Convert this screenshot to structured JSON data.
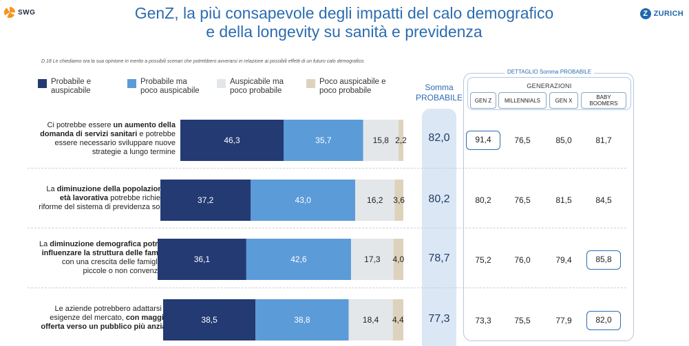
{
  "header": {
    "title_line1": "GenZ, la più consapevole degli impatti del calo demografico",
    "title_line2": "e della longevity su sanità e previdenza",
    "logo_left": "SWG",
    "logo_right": "ZURICH",
    "logo_right_mark": "Z"
  },
  "question": "D.18 Le chiediamo ora la sua opinione in merito a possibili scenari che potrebbero avverarsi in relazione ai possibili effetti di un futuro calo demografico.",
  "legend": [
    {
      "line1": "Probabile e",
      "line2": "auspicabile",
      "color": "#233a73"
    },
    {
      "line1": "Probabile ma",
      "line2": "poco auspicabile",
      "color": "#5b9bd8"
    },
    {
      "line1": "Auspicabile ma",
      "line2": "poco probabile",
      "color": "#e3e7ea"
    },
    {
      "line1": "Poco auspicabile e",
      "line2": "poco probabile",
      "color": "#ddd3bd"
    }
  ],
  "somma": {
    "line1": "Somma",
    "line2": "PROBABILE"
  },
  "panel": {
    "title": "DETTAGLIO Somma PROBABILE",
    "group_title": "GENERAZIONI",
    "columns": [
      "GEN Z",
      "MILLENNIALS",
      "GEN X",
      "BABY BOOMERS"
    ]
  },
  "rows": [
    {
      "label_parts": [
        {
          "text": "Ci potrebbe essere ",
          "bold": false
        },
        {
          "text": "un aumento della domanda di servizi sanitari",
          "bold": true
        },
        {
          "text": " e potrebbe essere necessario sviluppare nuove strategie a lungo termine",
          "bold": false
        }
      ],
      "somma": "82,0",
      "generations": [
        "91,4",
        "76,5",
        "85,0",
        "81,7"
      ],
      "highlight": 0
    },
    {
      "label_parts": [
        {
          "text": "La ",
          "bold": false
        },
        {
          "text": "diminuzione della popolazione in età lavorativa",
          "bold": true
        },
        {
          "text": " potrebbe richiedere riforme del sistema di previdenza sociale",
          "bold": false
        }
      ],
      "somma": "80,2",
      "generations": [
        "80,2",
        "76,5",
        "81,5",
        "84,5"
      ],
      "highlight": -1
    },
    {
      "label_parts": [
        {
          "text": "La ",
          "bold": false
        },
        {
          "text": "diminuzione demografica potrebbe influenzare la struttura delle famiglie",
          "bold": true
        },
        {
          "text": ", con una crescita delle famiglie più piccole o non convenzionali",
          "bold": false
        }
      ],
      "somma": "78,7",
      "generations": [
        "75,2",
        "76,0",
        "79,4",
        "85,8"
      ],
      "highlight": 3
    },
    {
      "label_parts": [
        {
          "text": "Le aziende potrebbero adattarsi alle esigenze del mercato, ",
          "bold": false
        },
        {
          "text": "con maggiore offerta verso un pubblico più anziano",
          "bold": true
        }
      ],
      "somma": "77,3",
      "generations": [
        "73,3",
        "75,5",
        "77,9",
        "82,0"
      ],
      "highlight": 3
    }
  ],
  "chart_data": {
    "type": "bar",
    "orientation": "horizontal",
    "stacked": true,
    "categories": [
      "Ci potrebbe essere un aumento della domanda di servizi sanitari e potrebbe essere necessario sviluppare nuove strategie a lungo termine",
      "La diminuzione della popolazione in età lavorativa potrebbe richiedere riforme del sistema di previdenza sociale",
      "La diminuzione demografica potrebbe influenzare la struttura delle famiglie, con una crescita delle famiglie più piccole o non convenzionali",
      "Le aziende potrebbero adattarsi alle esigenze del mercato, con maggiore offerta verso un pubblico più anziano"
    ],
    "series": [
      {
        "name": "Probabile e auspicabile",
        "values": [
          46.3,
          37.2,
          36.1,
          38.5
        ],
        "labels": [
          "46,3",
          "37,2",
          "36,1",
          "38,5"
        ],
        "color": "#233a73",
        "label_color": "#ffffff"
      },
      {
        "name": "Probabile ma poco auspicabile",
        "values": [
          35.7,
          43.0,
          42.6,
          38.8
        ],
        "labels": [
          "35,7",
          "43,0",
          "42,6",
          "38,8"
        ],
        "color": "#5b9bd8",
        "label_color": "#ffffff"
      },
      {
        "name": "Auspicabile ma poco probabile",
        "values": [
          15.8,
          16.2,
          17.3,
          18.4
        ],
        "labels": [
          "15,8",
          "16,2",
          "17,3",
          "18,4"
        ],
        "color": "#e3e7ea",
        "label_color": "#222222"
      },
      {
        "name": "Poco auspicabile e poco probabile",
        "values": [
          2.2,
          3.6,
          4.0,
          4.4
        ],
        "labels": [
          "2,2",
          "3,6",
          "4,0",
          "4,4"
        ],
        "color": "#ddd3bd",
        "label_color": "#222222"
      }
    ],
    "xlim": [
      0,
      100
    ],
    "grid": false,
    "legend": "top"
  }
}
